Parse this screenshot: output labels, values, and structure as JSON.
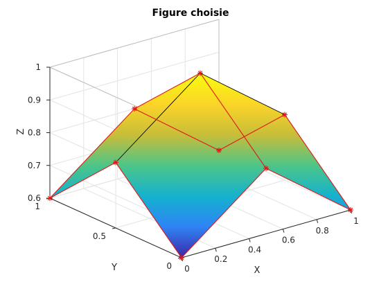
{
  "chart_data": {
    "type": "surface",
    "title": "Figure choisie",
    "xlabel": "X",
    "ylabel": "Y",
    "zlabel": "Z",
    "xlim": [
      0,
      1
    ],
    "ylim": [
      0,
      1
    ],
    "zlim": [
      0.6,
      1
    ],
    "xticks": [
      "0",
      "0.2",
      "0.4",
      "0.6",
      "0.8",
      "1"
    ],
    "yticks": [
      "0",
      "0.5",
      "1"
    ],
    "zticks": [
      "0.6",
      "0.7",
      "0.8",
      "0.9",
      "1"
    ],
    "grid": true,
    "colormap": [
      "#3e26a8",
      "#2e84f5",
      "#15b1cf",
      "#4bc589",
      "#c7bd3a",
      "#fbd428",
      "#f9fb0e"
    ],
    "edge_color": "#e01818",
    "marker_color": "#e01818",
    "marker": "*",
    "points": [
      {
        "x": 0,
        "y": 0,
        "z": 0.6
      },
      {
        "x": 0.5,
        "y": 0,
        "z": 0.8
      },
      {
        "x": 1,
        "y": 0,
        "z": 0.6
      },
      {
        "x": 0,
        "y": 0.5,
        "z": 0.8
      },
      {
        "x": 0.5,
        "y": 0.5,
        "z": 1.0
      },
      {
        "x": 1,
        "y": 0.5,
        "z": 0.8
      },
      {
        "x": 0,
        "y": 1,
        "z": 0.6
      },
      {
        "x": 0.5,
        "y": 1,
        "z": 0.8
      },
      {
        "x": 1,
        "y": 1,
        "z": 0.6
      }
    ]
  }
}
